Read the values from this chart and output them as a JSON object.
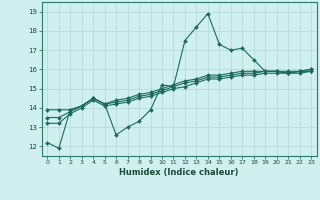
{
  "xlabel": "Humidex (Indice chaleur)",
  "bg_color": "#cff0ee",
  "grid_color": "#b8dbd7",
  "line_color": "#1a6b5a",
  "xlim": [
    -0.5,
    23.5
  ],
  "ylim": [
    11.5,
    19.5
  ],
  "xtick_labels": [
    "0",
    "1",
    "2",
    "3",
    "4",
    "5",
    "6",
    "7",
    "8",
    "9",
    "10",
    "11",
    "12",
    "13",
    "14",
    "15",
    "16",
    "17",
    "18",
    "19",
    "20",
    "21",
    "22",
    "23"
  ],
  "ytick_labels": [
    "12",
    "13",
    "14",
    "15",
    "16",
    "17",
    "18",
    "19"
  ],
  "series": [
    {
      "x": [
        0,
        1,
        2,
        3,
        4,
        5,
        6,
        7,
        8,
        9,
        10,
        11,
        12,
        13,
        14,
        15,
        16,
        17,
        18,
        19,
        20,
        21,
        22,
        23
      ],
      "y": [
        12.2,
        11.9,
        13.9,
        14.1,
        14.5,
        14.2,
        12.6,
        13.0,
        13.3,
        13.9,
        15.2,
        15.1,
        17.5,
        18.2,
        18.9,
        17.3,
        17.0,
        17.1,
        16.5,
        15.9,
        15.9,
        15.8,
        15.9,
        15.9
      ]
    },
    {
      "x": [
        0,
        1,
        2,
        3,
        4,
        5,
        6,
        7,
        8,
        9,
        10,
        11,
        12,
        13,
        14,
        15,
        16,
        17,
        18,
        19,
        20,
        21,
        22,
        23
      ],
      "y": [
        13.9,
        13.9,
        13.9,
        14.1,
        14.5,
        14.2,
        14.4,
        14.5,
        14.7,
        14.8,
        15.0,
        15.2,
        15.4,
        15.5,
        15.7,
        15.7,
        15.8,
        15.9,
        15.9,
        15.9,
        15.9,
        15.9,
        15.9,
        16.0
      ]
    },
    {
      "x": [
        0,
        1,
        2,
        3,
        4,
        5,
        6,
        7,
        8,
        9,
        10,
        11,
        12,
        13,
        14,
        15,
        16,
        17,
        18,
        19,
        20,
        21,
        22,
        23
      ],
      "y": [
        13.5,
        13.5,
        13.8,
        14.1,
        14.5,
        14.2,
        14.3,
        14.4,
        14.6,
        14.7,
        14.9,
        15.1,
        15.3,
        15.4,
        15.6,
        15.6,
        15.7,
        15.8,
        15.8,
        15.9,
        15.9,
        15.8,
        15.9,
        16.0
      ]
    },
    {
      "x": [
        0,
        1,
        2,
        3,
        4,
        5,
        6,
        7,
        8,
        9,
        10,
        11,
        12,
        13,
        14,
        15,
        16,
        17,
        18,
        19,
        20,
        21,
        22,
        23
      ],
      "y": [
        13.2,
        13.2,
        13.7,
        14.0,
        14.4,
        14.1,
        14.2,
        14.3,
        14.5,
        14.6,
        14.8,
        15.0,
        15.1,
        15.3,
        15.5,
        15.5,
        15.6,
        15.7,
        15.7,
        15.8,
        15.8,
        15.8,
        15.8,
        15.9
      ]
    }
  ]
}
